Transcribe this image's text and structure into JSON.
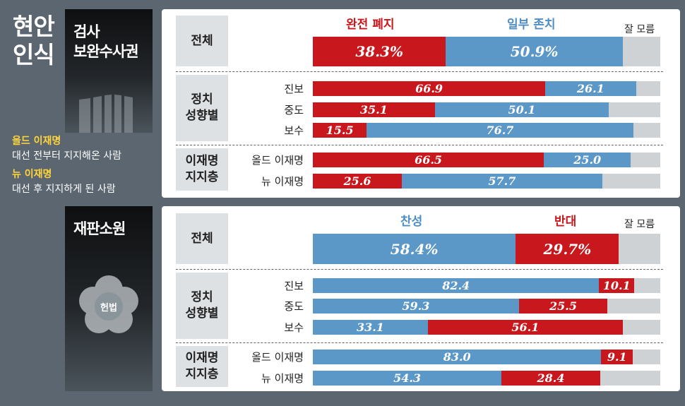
{
  "title": [
    "현안",
    "인식"
  ],
  "section1": {
    "topic": [
      "검사",
      "보완수사권"
    ],
    "headers": [
      "완전 폐지",
      "일부 존치",
      "잘 모름"
    ],
    "overall": {
      "label": "전체",
      "values": [
        38.3,
        50.9
      ]
    },
    "group_ideology": {
      "label": [
        "정치",
        "성향별"
      ],
      "rows": [
        {
          "label": "진보",
          "values": [
            66.9,
            26.1
          ]
        },
        {
          "label": "중도",
          "values": [
            35.1,
            50.1
          ]
        },
        {
          "label": "보수",
          "values": [
            15.5,
            76.7
          ]
        }
      ]
    },
    "group_support": {
      "label": [
        "이재명",
        "지지층"
      ],
      "rows": [
        {
          "label": "올드 이재명",
          "values": [
            66.5,
            25.0
          ]
        },
        {
          "label": "뉴 이재명",
          "values": [
            25.6,
            57.7
          ]
        }
      ]
    },
    "labels": {
      "overall": [
        "38.3%",
        "50.9%"
      ],
      "rows": [
        [
          "66.9",
          "26.1"
        ],
        [
          "35.1",
          "50.1"
        ],
        [
          "15.5",
          "76.7"
        ],
        [
          "66.5",
          "25.0"
        ],
        [
          "25.6",
          "57.7"
        ]
      ]
    }
  },
  "legend": {
    "old_title": "올드 이재명",
    "old_desc": "대선 전부터 지지해온 사람",
    "new_title": "뉴 이재명",
    "new_desc": "대선 후 지지하게 된 사람"
  },
  "section2": {
    "topic": "재판소원",
    "emblem": "헌법",
    "headers": [
      "찬성",
      "반대",
      "잘 모름"
    ],
    "overall": {
      "label": "전체",
      "values": [
        58.4,
        29.7
      ]
    },
    "group_ideology": {
      "label": [
        "정치",
        "성향별"
      ],
      "rows": [
        {
          "label": "진보",
          "values": [
            82.4,
            10.1
          ]
        },
        {
          "label": "중도",
          "values": [
            59.3,
            25.5
          ]
        },
        {
          "label": "보수",
          "values": [
            33.1,
            56.1
          ]
        }
      ]
    },
    "group_support": {
      "label": [
        "이재명",
        "지지층"
      ],
      "rows": [
        {
          "label": "올드 이재명",
          "values": [
            83.0,
            9.1
          ]
        },
        {
          "label": "뉴 이재명",
          "values": [
            54.3,
            28.4
          ]
        }
      ]
    },
    "labels": {
      "overall": [
        "58.4%",
        "29.7%"
      ],
      "rows": [
        [
          "82.4",
          "10.1"
        ],
        [
          "59.3",
          "25.5"
        ],
        [
          "33.1",
          "56.1"
        ],
        [
          "83.0",
          "9.1"
        ],
        [
          "54.3",
          "28.4"
        ]
      ]
    }
  },
  "chart_data": [
    {
      "type": "bar",
      "stacked": true,
      "orientation": "horizontal",
      "title": "검사 보완수사권",
      "categories": [
        "전체",
        "진보",
        "중도",
        "보수",
        "올드 이재명",
        "뉴 이재명"
      ],
      "series": [
        {
          "name": "완전 폐지",
          "values": [
            38.3,
            66.9,
            35.1,
            15.5,
            66.5,
            25.6
          ],
          "color": "#c8171d"
        },
        {
          "name": "일부 존치",
          "values": [
            50.9,
            26.1,
            50.1,
            76.7,
            25.0,
            57.7
          ],
          "color": "#5b97c7"
        },
        {
          "name": "잘 모름",
          "color": "#cfd2d4"
        }
      ],
      "xlim": [
        0,
        100
      ]
    },
    {
      "type": "bar",
      "stacked": true,
      "orientation": "horizontal",
      "title": "재판소원",
      "categories": [
        "전체",
        "진보",
        "중도",
        "보수",
        "올드 이재명",
        "뉴 이재명"
      ],
      "series": [
        {
          "name": "찬성",
          "values": [
            58.4,
            82.4,
            59.3,
            33.1,
            83.0,
            54.3
          ],
          "color": "#5b97c7"
        },
        {
          "name": "반대",
          "values": [
            29.7,
            10.1,
            25.5,
            56.1,
            9.1,
            28.4
          ],
          "color": "#c8171d"
        },
        {
          "name": "잘 모름",
          "color": "#cfd2d4"
        }
      ],
      "xlim": [
        0,
        100
      ]
    }
  ]
}
